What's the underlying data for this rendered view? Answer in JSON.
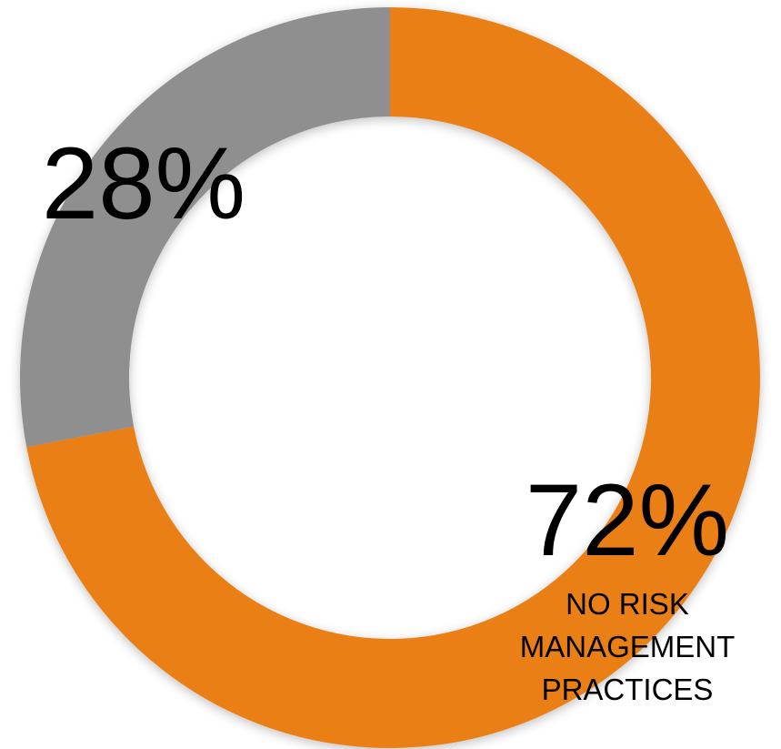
{
  "chart_data": {
    "type": "pie",
    "categories": [
      "",
      "NO RISK MANAGEMENT PRACTICES"
    ],
    "values": [
      28,
      72
    ],
    "colors": [
      "#8f8f8f",
      "#ea7f17"
    ],
    "data_labels": [
      "28%",
      "72%"
    ],
    "category_label_lines": [
      "NO RISK",
      "MANAGEMENT",
      "PRACTICES"
    ],
    "donut": true,
    "start": "top-clockwise",
    "order": [
      "72%",
      "28%"
    ]
  }
}
